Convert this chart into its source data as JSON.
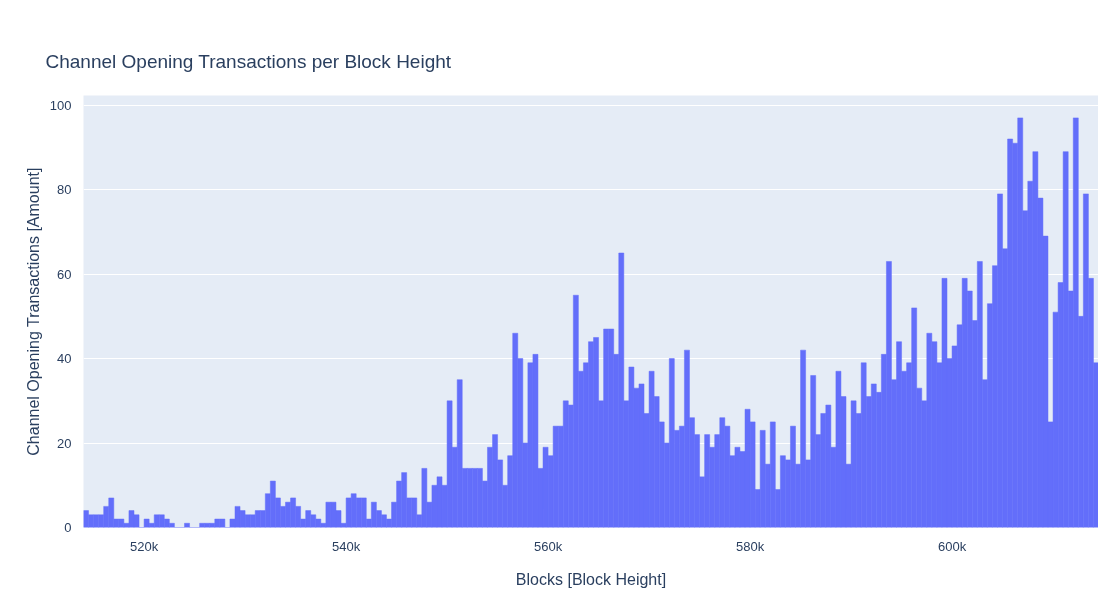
{
  "chart_data": {
    "type": "histogram",
    "title": "Channel Opening Transactions per Block Height",
    "xlabel": "Blocks [Block Height]",
    "ylabel": "Channel Opening Transactions [Amount]",
    "color": "#636efa",
    "bins": [
      514000,
      514500,
      515000,
      515500,
      516000,
      516500,
      517000,
      517500,
      518000,
      518500,
      519000,
      519500,
      520000,
      520500,
      521000,
      521500,
      522000,
      522500,
      523000,
      523500,
      524000,
      524500,
      525000,
      525500,
      526000,
      526500,
      527000,
      527500,
      528000,
      528500,
      529000,
      529500,
      530000,
      530500,
      531000,
      531500,
      532000,
      532500,
      533000,
      533500,
      534000,
      534500,
      535000,
      535500,
      536000,
      536500,
      537000,
      537500,
      538000,
      538500,
      539000,
      539500,
      540000,
      540500,
      541000,
      541500,
      542000,
      542500,
      543000,
      543500,
      544000,
      544500,
      545000,
      545500,
      546000,
      546500,
      547000,
      547500,
      548000,
      548500,
      549000,
      549500,
      550000,
      550500,
      551000,
      551500,
      552000,
      552500,
      553000,
      553500,
      554000,
      554500,
      555000,
      555500,
      556000,
      556500,
      557000,
      557500,
      558000,
      558500,
      559000,
      559500,
      560000,
      560500,
      561000,
      561500,
      562000,
      562500,
      563000,
      563500,
      564000,
      564500,
      565000,
      565500,
      566000,
      566500,
      567000,
      567500,
      568000,
      568500,
      569000,
      569500,
      570000,
      570500,
      571000,
      571500,
      572000,
      572500,
      573000,
      573500,
      574000,
      574500,
      575000,
      575500,
      576000,
      576500,
      577000,
      577500,
      578000,
      578500,
      579000,
      579500,
      580000,
      580500,
      581000,
      581500,
      582000,
      582500,
      583000,
      583500,
      584000,
      584500,
      585000,
      585500,
      586000,
      586500,
      587000,
      587500,
      588000,
      588500,
      589000,
      589500,
      590000,
      590500,
      591000,
      591500,
      592000,
      592500,
      593000,
      593500,
      594000,
      594500,
      595000,
      595500,
      596000,
      596500,
      597000,
      597500,
      598000,
      598500,
      599000,
      599500,
      600000,
      600500,
      601000,
      601500,
      602000,
      602500,
      603000,
      603500,
      604000,
      604500,
      605000,
      605500,
      606000,
      606500,
      607000,
      607500,
      608000,
      608500,
      609000,
      609500,
      610000,
      610500,
      611000,
      611500,
      612000,
      612500,
      613000,
      613500,
      614000,
      614500
    ],
    "values": [
      4,
      3,
      3,
      3,
      5,
      7,
      2,
      2,
      1,
      4,
      3,
      0,
      2,
      1,
      3,
      3,
      2,
      1,
      0,
      0,
      1,
      0,
      0,
      1,
      1,
      1,
      2,
      2,
      0,
      2,
      5,
      4,
      3,
      3,
      4,
      4,
      8,
      11,
      7,
      5,
      6,
      7,
      5,
      2,
      4,
      3,
      2,
      1,
      6,
      6,
      4,
      1,
      7,
      8,
      7,
      7,
      2,
      6,
      4,
      3,
      2,
      6,
      11,
      13,
      7,
      7,
      3,
      14,
      6,
      10,
      12,
      10,
      30,
      19,
      35,
      14,
      14,
      14,
      14,
      11,
      19,
      22,
      16,
      10,
      17,
      46,
      40,
      20,
      39,
      41,
      14,
      19,
      17,
      24,
      24,
      30,
      29,
      55,
      37,
      39,
      44,
      45,
      30,
      47,
      47,
      41,
      65,
      30,
      38,
      33,
      34,
      27,
      37,
      31,
      25,
      20,
      40,
      23,
      24,
      42,
      26,
      22,
      12,
      22,
      19,
      22,
      26,
      24,
      17,
      19,
      18,
      28,
      25,
      9,
      23,
      15,
      25,
      9,
      17,
      16,
      24,
      15,
      42,
      16,
      36,
      22,
      27,
      29,
      19,
      37,
      31,
      15,
      30,
      27,
      39,
      31,
      34,
      32,
      41,
      63,
      35,
      44,
      37,
      39,
      52,
      33,
      30,
      46,
      44,
      39,
      59,
      40,
      43,
      48,
      59,
      56,
      49,
      63,
      35,
      53,
      62,
      79,
      66,
      92,
      91,
      97,
      75,
      82,
      89,
      78,
      69,
      25,
      51,
      58,
      89,
      56,
      97,
      50,
      79,
      59,
      39
    ],
    "xlim": [
      514000,
      614500
    ],
    "ylim": [
      0,
      102.3
    ],
    "xticks": [
      {
        "value": 520000,
        "label": "520k"
      },
      {
        "value": 540000,
        "label": "540k"
      },
      {
        "value": 560000,
        "label": "560k"
      },
      {
        "value": 580000,
        "label": "580k"
      },
      {
        "value": 600000,
        "label": "600k"
      }
    ],
    "yticks": [
      0,
      20,
      40,
      60,
      80,
      100
    ],
    "grid": "y"
  }
}
